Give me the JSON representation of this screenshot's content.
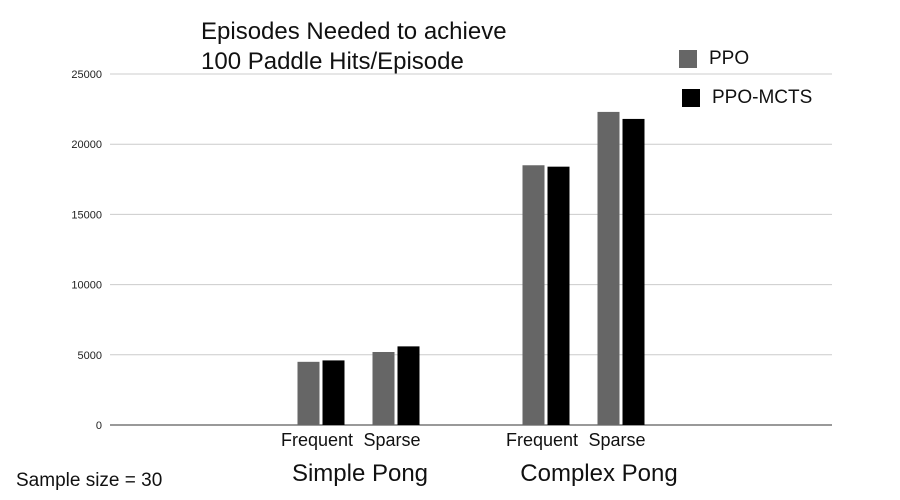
{
  "chart_data": {
    "type": "bar",
    "title": "Episodes Needed to achieve 100 Paddle Hits/Episode",
    "title_lines": [
      "Episodes Needed to achieve",
      "100 Paddle Hits/Episode"
    ],
    "groups": [
      {
        "label": "Simple Pong",
        "categories": [
          "Frequent",
          "Sparse"
        ]
      },
      {
        "label": "Complex Pong",
        "categories": [
          "Frequent",
          "Sparse"
        ]
      }
    ],
    "categories": [
      "Frequent",
      "Sparse",
      "Frequent",
      "Sparse"
    ],
    "series": [
      {
        "name": "PPO",
        "color": "#666666",
        "values": [
          4500,
          5200,
          18500,
          22300
        ]
      },
      {
        "name": "PPO-MCTS",
        "color": "#000000",
        "values": [
          4600,
          5600,
          18400,
          21800
        ]
      }
    ],
    "ylim": [
      0,
      25000
    ],
    "yticks": [
      0,
      5000,
      10000,
      15000,
      20000,
      25000
    ],
    "grid": true,
    "legend_position": "top-right"
  },
  "note": "Sample size = 30"
}
